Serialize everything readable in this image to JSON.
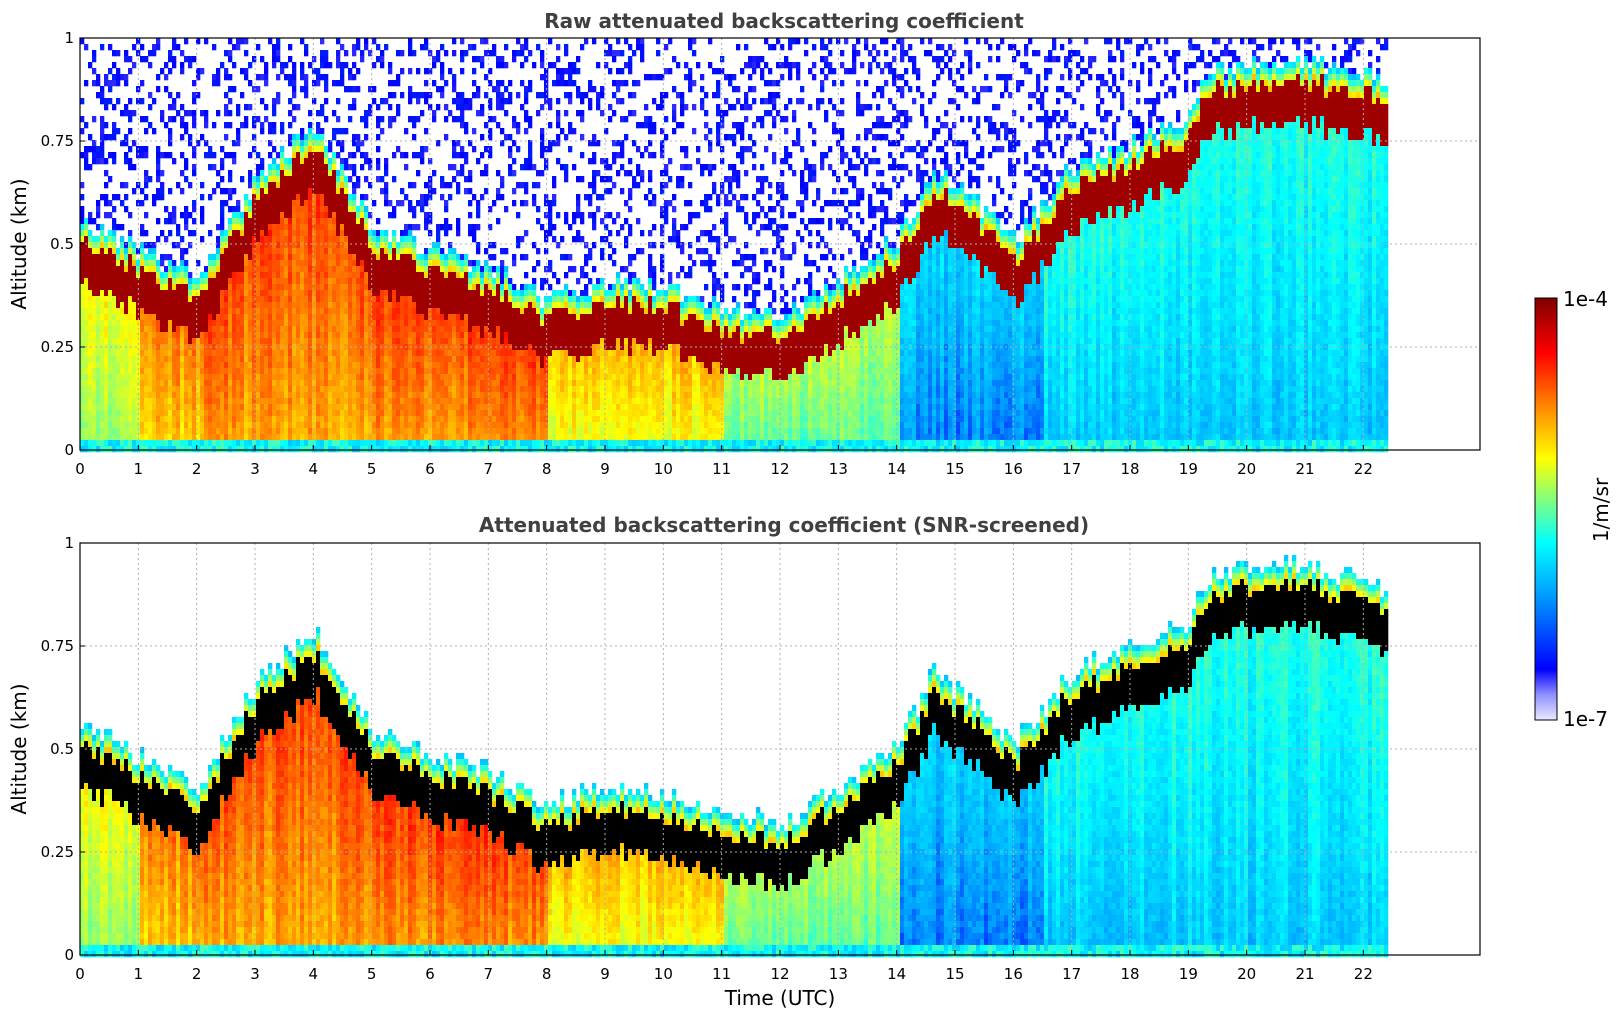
{
  "colors": {
    "colormap": [
      "#e8e8ff",
      "#0000ff",
      "#00a0ff",
      "#00ffff",
      "#80ff80",
      "#ffff00",
      "#ff8000",
      "#ff0000",
      "#800000"
    ],
    "screened_saturated": "#000000",
    "axes": "#000000",
    "grid": "#b0b0b0"
  },
  "colorbar": {
    "label": "1/m/sr",
    "max_label": "1e-4",
    "min_label": "1e-7",
    "scale": "log",
    "range": [
      1e-07,
      0.0001
    ]
  },
  "chart_data": [
    {
      "type": "heatmap",
      "title": "Raw attenuated backscattering coefficient",
      "xlabel": "",
      "ylabel": "Altitude (km)",
      "xlim": [
        0,
        24
      ],
      "ylim": [
        0,
        1
      ],
      "data_xlim": [
        0,
        22.4
      ],
      "x_ticks": [
        "0",
        "1",
        "2",
        "3",
        "4",
        "5",
        "6",
        "7",
        "8",
        "9",
        "10",
        "11",
        "12",
        "13",
        "14",
        "15",
        "16",
        "17",
        "18",
        "19",
        "20",
        "21",
        "22"
      ],
      "y_ticks": [
        "0",
        "0.25",
        "0.5",
        "0.75",
        "1"
      ],
      "grid": true,
      "layer_top_km": {
        "hours": [
          0,
          1,
          2,
          3,
          4,
          5,
          6,
          7,
          8,
          9,
          10,
          11,
          12,
          13,
          14,
          14.6,
          15.5,
          16,
          17,
          18,
          19,
          19.3,
          20,
          21,
          22,
          22.4
        ],
        "values": [
          0.5,
          0.42,
          0.35,
          0.6,
          0.72,
          0.48,
          0.42,
          0.38,
          0.3,
          0.35,
          0.33,
          0.28,
          0.26,
          0.35,
          0.45,
          0.62,
          0.52,
          0.45,
          0.63,
          0.68,
          0.75,
          0.85,
          0.88,
          0.88,
          0.85,
          0.82
        ]
      }
    },
    {
      "type": "heatmap",
      "title": "Attenuated backscattering coefficient (SNR-screened)",
      "xlabel": "Time (UTC)",
      "ylabel": "Altitude (km)",
      "xlim": [
        0,
        24
      ],
      "ylim": [
        0,
        1
      ],
      "data_xlim": [
        0,
        22.4
      ],
      "x_ticks": [
        "0",
        "1",
        "2",
        "3",
        "4",
        "5",
        "6",
        "7",
        "8",
        "9",
        "10",
        "11",
        "12",
        "13",
        "14",
        "15",
        "16",
        "17",
        "18",
        "19",
        "20",
        "21",
        "22"
      ],
      "y_ticks": [
        "0",
        "0.25",
        "0.5",
        "0.75",
        "1"
      ],
      "grid": true,
      "layer_top_km": {
        "hours": [
          0,
          1,
          2,
          3,
          4,
          5,
          6,
          7,
          8,
          9,
          10,
          11,
          12,
          13,
          14,
          14.6,
          15.5,
          16,
          17,
          18,
          19,
          19.3,
          20,
          21,
          22,
          22.4
        ],
        "values": [
          0.5,
          0.42,
          0.35,
          0.6,
          0.72,
          0.48,
          0.42,
          0.38,
          0.3,
          0.35,
          0.33,
          0.28,
          0.26,
          0.35,
          0.45,
          0.62,
          0.52,
          0.45,
          0.63,
          0.68,
          0.75,
          0.85,
          0.88,
          0.88,
          0.85,
          0.82
        ]
      }
    }
  ]
}
